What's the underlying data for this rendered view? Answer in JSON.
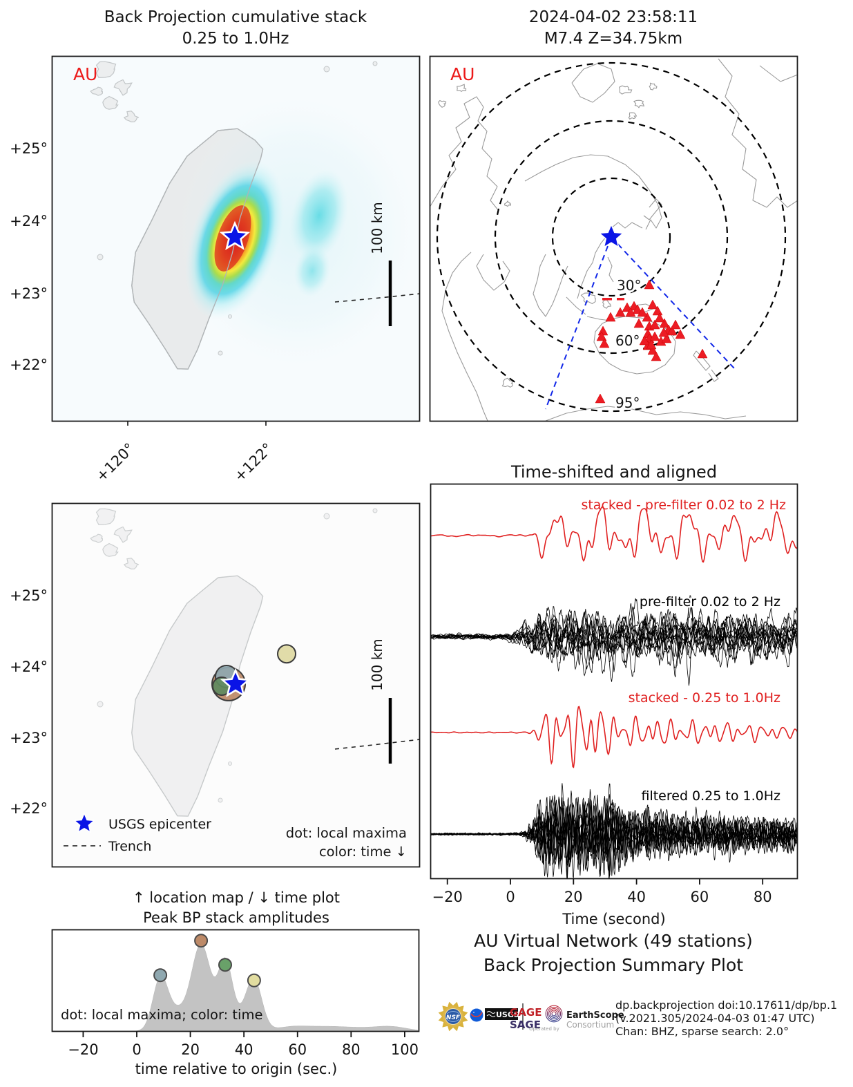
{
  "panel_bp_map": {
    "title_line1": "Back Projection cumulative stack",
    "title_line2": "0.25 to 1.0Hz",
    "network_label": "AU",
    "lat_ticks": [
      "+25°",
      "+24°",
      "+23°",
      "+22°"
    ],
    "lon_ticks": [
      "+120°",
      "+122°"
    ],
    "scale_label": "100 km"
  },
  "panel_world_map": {
    "title_line1": "2024-04-02 23:58:11",
    "title_line2": "M7.4 Z=34.75km",
    "network_label": "AU",
    "ring_labels": [
      "30°",
      "60°",
      "95°"
    ]
  },
  "panel_maxima_map": {
    "lat_ticks": [
      "+25°",
      "+24°",
      "+23°",
      "+22°"
    ],
    "scale_label": "100 km",
    "legend_epicenter": "USGS epicenter",
    "legend_trench": "Trench",
    "note_line1": "dot: local maxima",
    "note_line2": "color: time ↓"
  },
  "panel_waveforms": {
    "title": "Time-shifted and aligned",
    "labels": [
      "stacked - pre-filter 0.02 to 2 Hz",
      "pre-filter 0.02 to 2 Hz",
      "stacked - 0.25 to 1.0Hz",
      "filtered 0.25 to 1.0Hz"
    ],
    "xlabel": "Time (second)",
    "x_tick_labels": [
      "−20",
      "0",
      "20",
      "40",
      "60",
      "80"
    ]
  },
  "panel_amplitude": {
    "title_line1": "↑ location map / ↓ time plot",
    "title_line2": "Peak BP stack amplitudes",
    "note": "dot: local maxima; color: time",
    "xlabel": "time relative to origin (sec.)",
    "x_tick_labels": [
      "−20",
      "0",
      "20",
      "40",
      "60",
      "80",
      "100"
    ]
  },
  "footer": {
    "title_line1": "AU Virtual Network (49 stations)",
    "title_line2": "Back Projection Summary Plot",
    "credits": [
      "dp.backprojection doi:10.17611/dp/bp.1",
      "(v.2021.305/2024-04-03 01:47 UTC)",
      "Chan: BHZ, sparse search: 2.0°"
    ],
    "logos": {
      "nsf_text": "NSF",
      "usgs_text": "USGS",
      "gage": "GAGE",
      "sage": "SAGE",
      "operated_by": "Operated by",
      "earthscope": "EarthScope",
      "consortium": "Consortium"
    }
  },
  "colors": {
    "epicenter_star": "#0a14e6",
    "station_triangle": "#ec1c24",
    "stacked_trace": "#e02020",
    "station_traces": "#000000",
    "amplitude_fill": "#c3c3c3",
    "land_fill": "#eaeced",
    "coastline": "#9a9a9a",
    "network_label": "#ec1a1a"
  },
  "chart_data": [
    {
      "id": "bp_cumulative_stack_map",
      "type": "heatmap",
      "title": "Back Projection cumulative stack 0.25 to 1.0Hz",
      "network": "AU",
      "x_ticks_lon_deg": [
        120,
        122
      ],
      "y_ticks_lat_deg": [
        25,
        24,
        23,
        22
      ],
      "map_extent": {
        "lon": [
          118.9,
          124.2
        ],
        "lat": [
          21.2,
          26.3
        ]
      },
      "epicenter": {
        "lon": 121.55,
        "lat": 23.77
      },
      "hotspot": {
        "center_lon": 121.55,
        "center_lat": 23.77,
        "shape": "ellipse elongated NNE-SSW",
        "peak_color": "#dd3020",
        "colormap": "jet-like red-yellow-green-cyan"
      },
      "secondary_blob": {
        "center_lon": 122.75,
        "center_lat": 24.0,
        "color": "cyan"
      },
      "scale_bar_km": 100,
      "trench": "dashed line entering from east"
    },
    {
      "id": "station_map",
      "type": "scatter",
      "title": "2024-04-02 23:58:11 M7.4 Z=34.75km",
      "network": "AU",
      "projection": "azimuthal, centered on epicenter",
      "distance_rings_deg": [
        30,
        60,
        95
      ],
      "n_stations": 49,
      "station_marker": "red triangle",
      "station_region": "Australia / New Zealand cluster between 30° and 95° rings",
      "epicenter_marker": "blue star",
      "azimuth_fan": "blue dashed lines from epicenter bracketing station cluster"
    },
    {
      "id": "local_maxima_map",
      "type": "scatter",
      "legend": [
        "USGS epicenter",
        "Trench"
      ],
      "note": "dot: local maxima, color: time (downward arrow)",
      "maxima": [
        {
          "time_s": 9,
          "lon": 121.43,
          "lat": 23.875,
          "color": "#8fa8b0",
          "radius_px": 16
        },
        {
          "time_s": 24,
          "lon": 121.46,
          "lat": 23.77,
          "color": "#bd8a68",
          "radius_px": 24
        },
        {
          "time_s": 33,
          "lon": 121.36,
          "lat": 23.74,
          "color": "#5e8a5e",
          "radius_px": 13
        },
        {
          "time_s": 44,
          "lon": 122.3,
          "lat": 24.19,
          "color": "#ded9a2",
          "radius_px": 13
        }
      ],
      "scale_bar_km": 100
    },
    {
      "id": "waveforms",
      "type": "line",
      "title": "Time-shifted and aligned",
      "xlabel": "Time (second)",
      "x_range_s": [
        -25,
        91
      ],
      "x_ticks": [
        -20,
        0,
        20,
        40,
        60,
        80
      ],
      "rows": [
        {
          "label": "stacked - pre-filter 0.02 to 2 Hz",
          "color": "#e02020",
          "style": "single stacked trace, long period"
        },
        {
          "label": "pre-filter 0.02 to 2 Hz",
          "color": "#000000",
          "style": "overlaid traces of 49 stations"
        },
        {
          "label": "stacked - 0.25 to 1.0Hz",
          "color": "#e02020",
          "style": "single stacked trace, band-passed"
        },
        {
          "label": "filtered 0.25 to 1.0Hz",
          "color": "#000000",
          "style": "overlaid traces of 49 stations, band-passed"
        }
      ],
      "onset_time_s": 0,
      "strong_shaking_window_s": [
        5,
        60
      ]
    },
    {
      "id": "peak_bp_stack_amplitudes",
      "type": "area",
      "title": "Peak BP stack amplitudes",
      "xlabel": "time relative to origin (sec.)",
      "x_range_s": [
        -25,
        100
      ],
      "x_ticks": [
        -20,
        0,
        20,
        40,
        60,
        80,
        100
      ],
      "fill_color": "#c3c3c3",
      "peaks": [
        {
          "time_s": 8.8,
          "relative_amplitude": 0.6,
          "color": "#8fa8b0",
          "width_s": 2.8
        },
        {
          "time_s": 24.0,
          "relative_amplitude": 1.0,
          "color": "#bd8a68",
          "width_s": 3.6
        },
        {
          "time_s": 33.0,
          "relative_amplitude": 0.72,
          "color": "#69a169",
          "width_s": 2.6
        },
        {
          "time_s": 43.8,
          "relative_amplitude": 0.54,
          "color": "#e2dda0",
          "width_s": 2.9
        }
      ],
      "note": "dot: local maxima; color: time"
    }
  ]
}
